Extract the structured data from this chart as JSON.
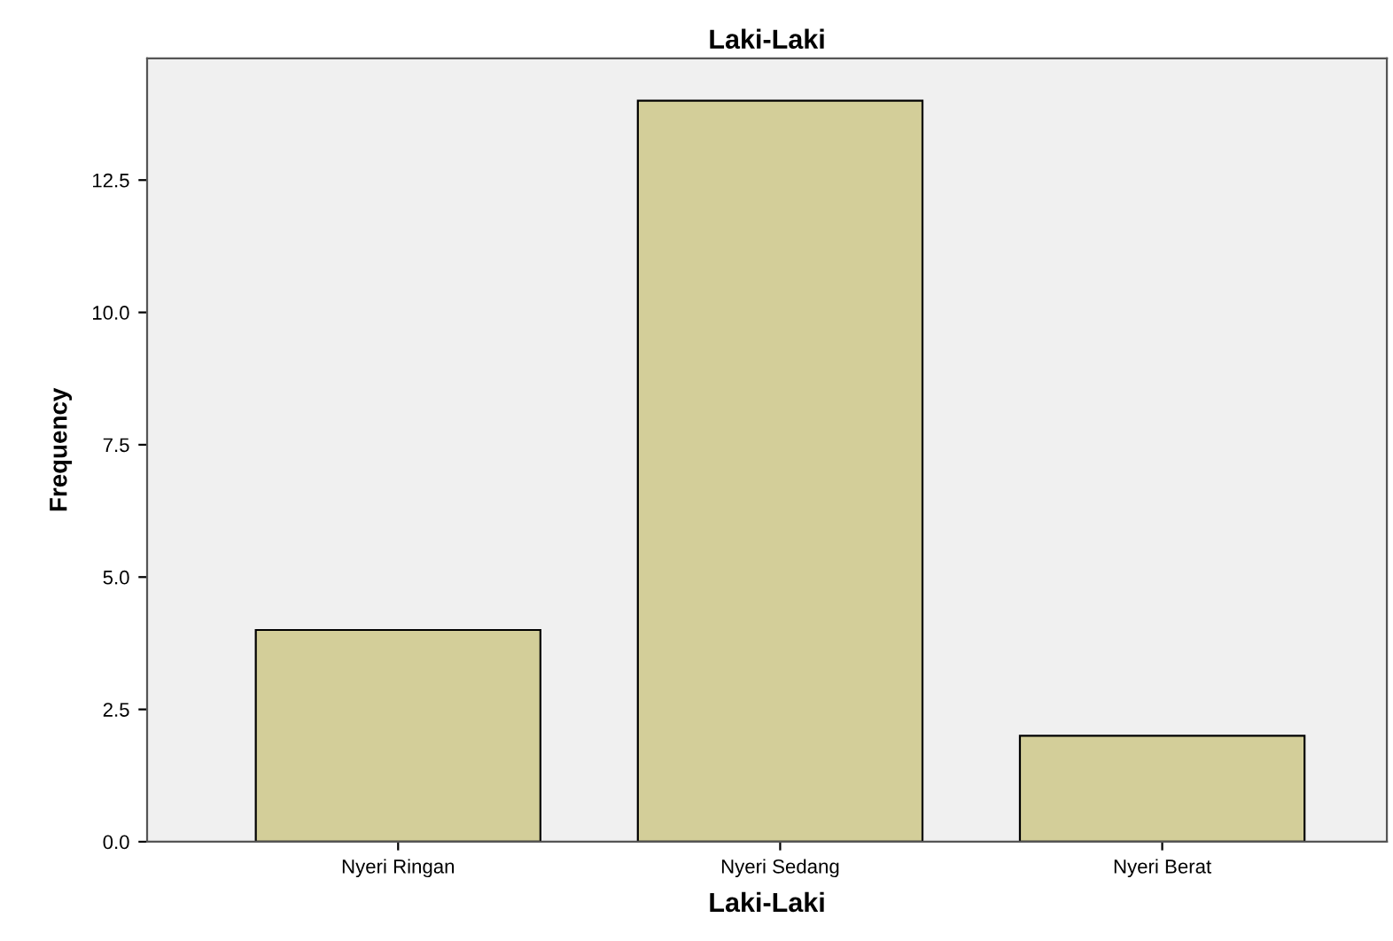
{
  "chart_data": {
    "type": "bar",
    "title": "Laki-Laki",
    "xlabel": "Laki-Laki",
    "ylabel": "Frequency",
    "categories": [
      "Nyeri Ringan",
      "Nyeri Sedang",
      "Nyeri Berat"
    ],
    "series": [
      {
        "color": "#d3ce99",
        "values": [
          4,
          14,
          2
        ]
      }
    ],
    "ylim": [
      0,
      14.8
    ],
    "yticks": [
      {
        "value": 0,
        "label": "0.0"
      },
      {
        "value": 2.5,
        "label": "2.5"
      },
      {
        "value": 5,
        "label": "5.0"
      },
      {
        "value": 7.5,
        "label": "7.5"
      },
      {
        "value": 10,
        "label": "10.0"
      },
      {
        "value": 12.5,
        "label": "12.5"
      }
    ],
    "grid": false,
    "legend": false
  }
}
